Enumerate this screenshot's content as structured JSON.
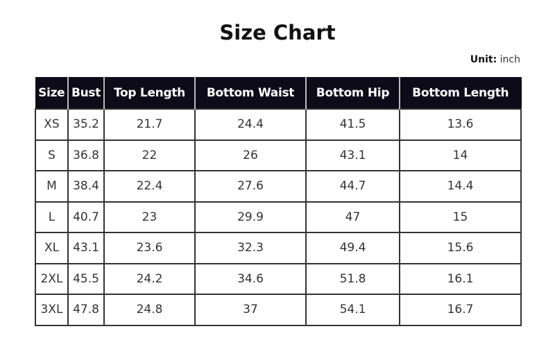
{
  "title": "Size Chart",
  "unit_label": "Unit:",
  "unit_value": "inch",
  "columns": [
    "Size",
    "Bust",
    "Top Length",
    "Bottom Waist",
    "Bottom Hip",
    "Bottom Length"
  ],
  "rows": [
    [
      "XS",
      "35.2",
      "21.7",
      "24.4",
      "41.5",
      "13.6"
    ],
    [
      "S",
      "36.8",
      "22",
      "26",
      "43.1",
      "14"
    ],
    [
      "M",
      "38.4",
      "22.4",
      "27.6",
      "44.7",
      "14.4"
    ],
    [
      "L",
      "40.7",
      "23",
      "29.9",
      "47",
      "15"
    ],
    [
      "XL",
      "43.1",
      "23.6",
      "32.3",
      "49.4",
      "15.6"
    ],
    [
      "2XL",
      "45.5",
      "24.2",
      "34.6",
      "51.8",
      "16.1"
    ],
    [
      "3XL",
      "47.8",
      "24.8",
      "37",
      "54.1",
      "16.7"
    ]
  ],
  "colors": {
    "header_bg": "#0d0b18",
    "header_text": "#ffffff"
  }
}
